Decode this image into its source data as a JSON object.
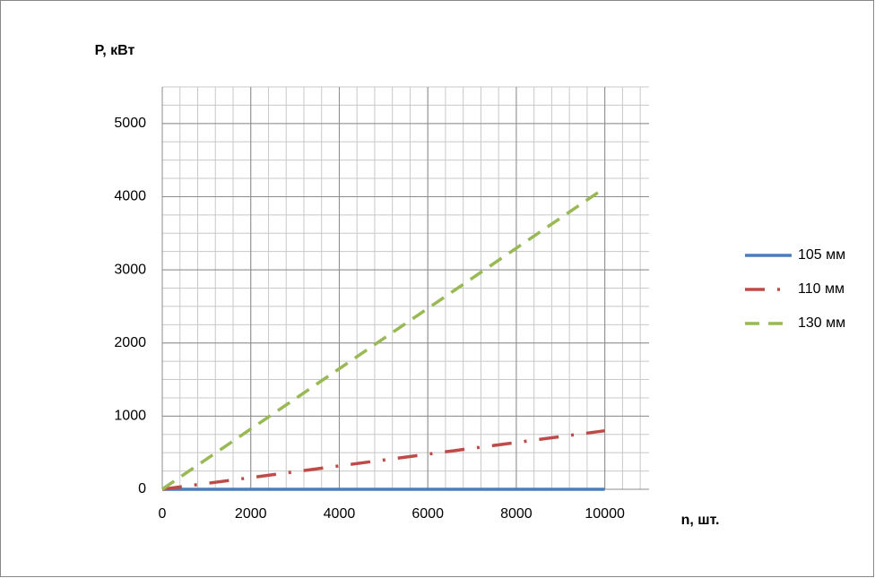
{
  "chart_data": {
    "type": "line",
    "x_label": "n, шт.",
    "y_label": "P, кВт",
    "x": [
      0,
      2000,
      4000,
      6000,
      8000,
      10000
    ],
    "series": [
      {
        "name": "105 мм",
        "color": "#4a7ebb",
        "dash": "solid",
        "values": [
          0,
          0,
          0,
          0,
          0,
          0
        ]
      },
      {
        "name": "110 мм",
        "color": "#be4b48",
        "dash": "dash-dot",
        "values": [
          0,
          160,
          320,
          480,
          640,
          800
        ]
      },
      {
        "name": "130 мм",
        "color": "#98b954",
        "dash": "dash",
        "values": [
          0,
          824,
          1648,
          2472,
          3296,
          4120
        ]
      }
    ],
    "xlim": [
      0,
      11000
    ],
    "ylim": [
      0,
      5500
    ],
    "xticks": [
      0,
      2000,
      4000,
      6000,
      8000,
      10000
    ],
    "yticks": [
      0,
      1000,
      2000,
      3000,
      4000,
      5000
    ],
    "x_minor_step": 400,
    "y_minor_step": 250,
    "grid": true,
    "legend": "right"
  }
}
